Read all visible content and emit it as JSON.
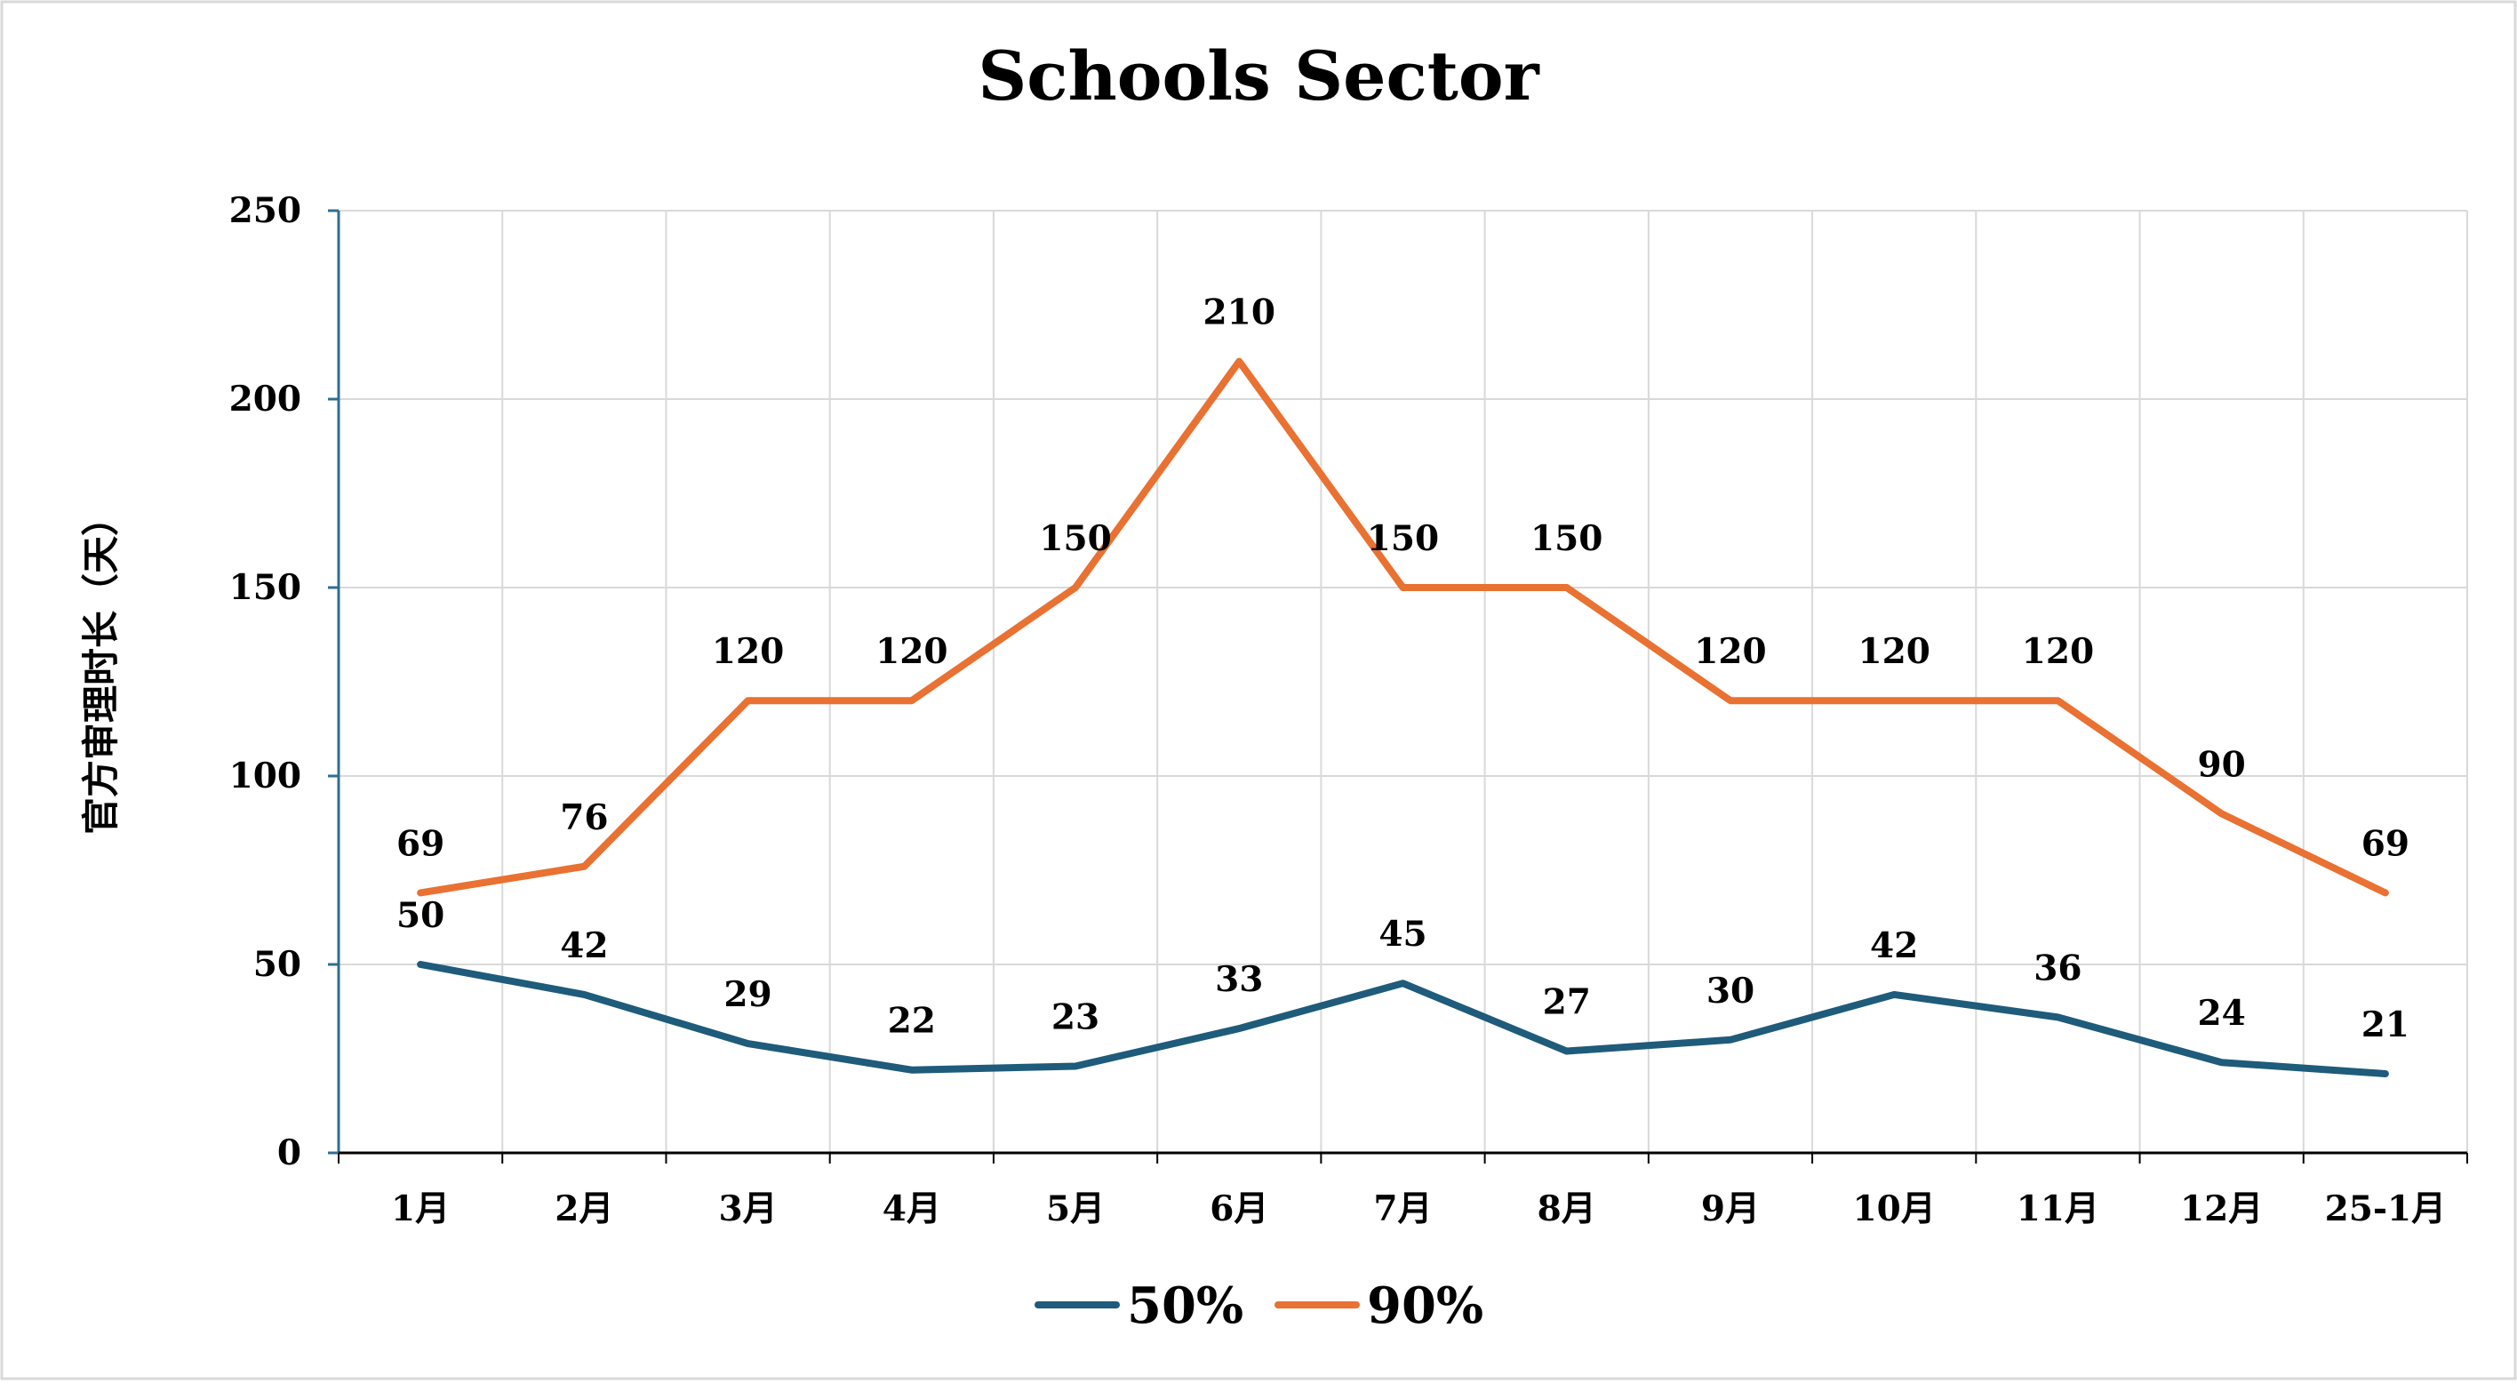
{
  "chart_data": {
    "type": "line",
    "title": "Schools Sector",
    "xlabel": "",
    "ylabel": "官方审理时长（天）",
    "categories": [
      "1月",
      "2月",
      "3月",
      "4月",
      "5月",
      "6月",
      "7月",
      "8月",
      "9月",
      "10月",
      "11月",
      "12月",
      "25-1月"
    ],
    "ylim": [
      0,
      250
    ],
    "yticks": [
      0,
      50,
      100,
      150,
      200,
      250
    ],
    "grid": true,
    "legend_position": "bottom",
    "series": [
      {
        "name": "50%",
        "color": "#1f5b7a",
        "values": [
          50,
          42,
          29,
          22,
          23,
          33,
          45,
          27,
          30,
          42,
          36,
          24,
          21
        ]
      },
      {
        "name": "90%",
        "color": "#e97132",
        "values": [
          69,
          76,
          120,
          120,
          150,
          210,
          150,
          150,
          120,
          120,
          120,
          90,
          69
        ]
      }
    ]
  }
}
